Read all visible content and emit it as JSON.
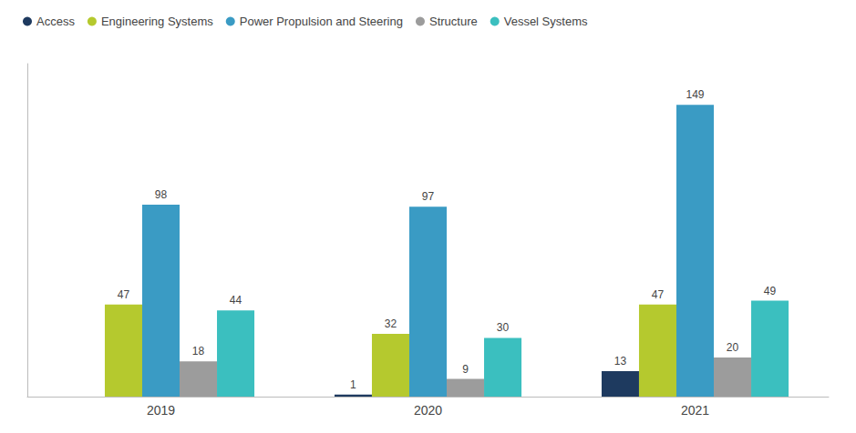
{
  "chart_data": {
    "type": "bar",
    "categories": [
      "2019",
      "2020",
      "2021"
    ],
    "series": [
      {
        "name": "Access",
        "color": "#1e3a5f",
        "values": [
          0,
          1,
          13
        ],
        "value_labels": [
          null,
          "1",
          "13"
        ]
      },
      {
        "name": "Engineering Systems",
        "color": "#b5c92e",
        "values": [
          47,
          32,
          47
        ]
      },
      {
        "name": "Power Propulsion and Steering",
        "color": "#3a9bc4",
        "values": [
          98,
          97,
          149
        ]
      },
      {
        "name": "Structure",
        "color": "#9c9c9c",
        "values": [
          18,
          9,
          20
        ]
      },
      {
        "name": "Vessel Systems",
        "color": "#3bbfbf",
        "values": [
          44,
          30,
          49
        ]
      }
    ],
    "ylim": [
      0,
      170
    ],
    "grid": false,
    "legend": "upper left",
    "data_labels": true,
    "tick_labels": "x"
  }
}
